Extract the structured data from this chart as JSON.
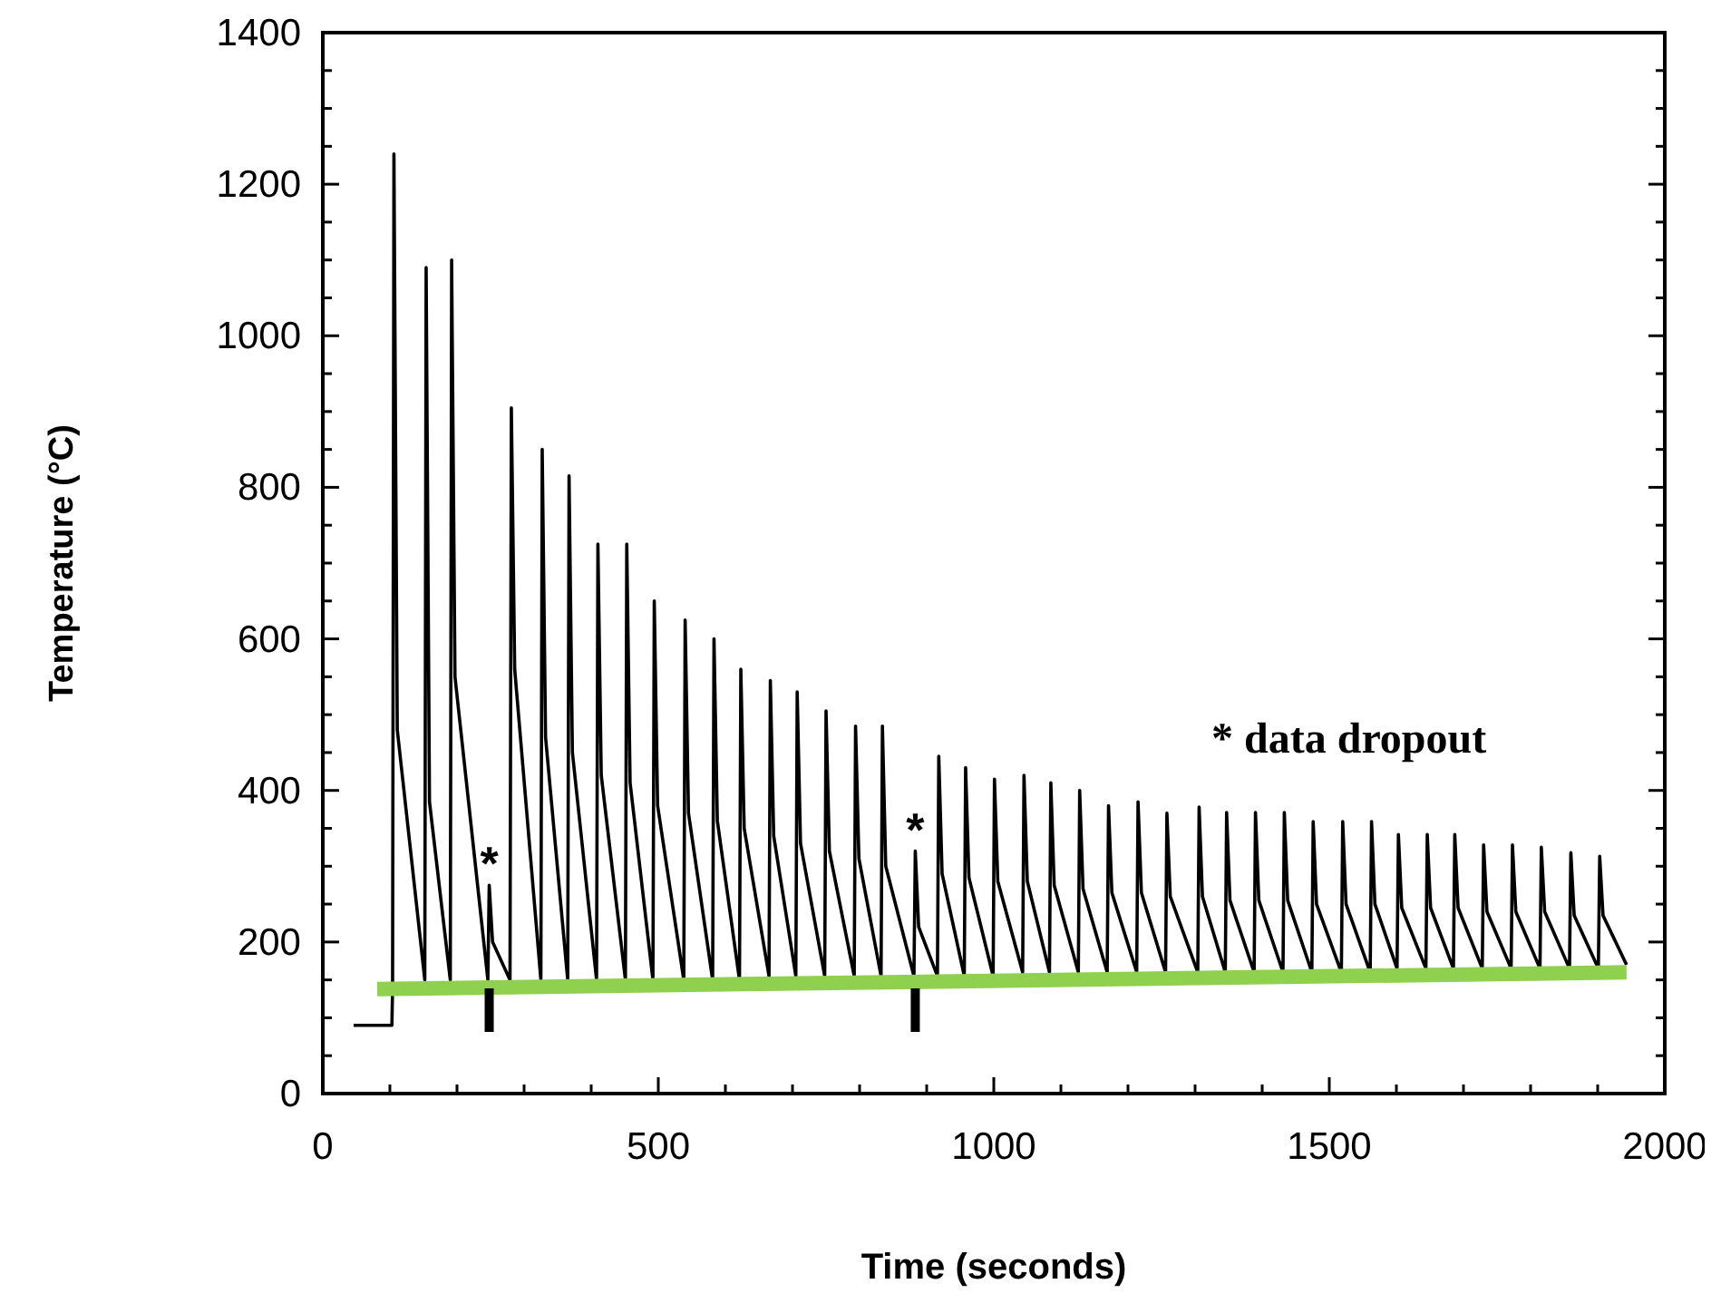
{
  "chart_data": {
    "type": "line",
    "xlabel": "Time (seconds)",
    "ylabel": "Temperature (°C)",
    "xlim": [
      0,
      2000
    ],
    "ylim": [
      0,
      1400
    ],
    "xticks": [
      0,
      {
        "value": 100,
        "label": null
      },
      {
        "value": 200,
        "label": null
      },
      {
        "value": 300,
        "label": null
      },
      {
        "value": 400,
        "label": null
      },
      500,
      {
        "value": 600,
        "label": null
      },
      {
        "value": 700,
        "label": null
      },
      {
        "value": 800,
        "label": null
      },
      {
        "value": 900,
        "label": null
      },
      1000,
      {
        "value": 1100,
        "label": null
      },
      {
        "value": 1200,
        "label": null
      },
      {
        "value": 1300,
        "label": null
      },
      {
        "value": 1400,
        "label": null
      },
      1500,
      {
        "value": 1600,
        "label": null
      },
      {
        "value": 1700,
        "label": null
      },
      {
        "value": 1800,
        "label": null
      },
      {
        "value": 1900,
        "label": null
      },
      2000
    ],
    "yticks": [
      0,
      {
        "value": 50,
        "label": null
      },
      {
        "value": 100,
        "label": null
      },
      {
        "value": 150,
        "label": null
      },
      200,
      {
        "value": 250,
        "label": null
      },
      {
        "value": 300,
        "label": null
      },
      {
        "value": 350,
        "label": null
      },
      400,
      {
        "value": 450,
        "label": null
      },
      {
        "value": 500,
        "label": null
      },
      {
        "value": 550,
        "label": null
      },
      600,
      {
        "value": 650,
        "label": null
      },
      {
        "value": 700,
        "label": null
      },
      {
        "value": 750,
        "label": null
      },
      800,
      {
        "value": 850,
        "label": null
      },
      {
        "value": 900,
        "label": null
      },
      {
        "value": 950,
        "label": null
      },
      1000,
      {
        "value": 1050,
        "label": null
      },
      {
        "value": 1100,
        "label": null
      },
      {
        "value": 1150,
        "label": null
      },
      1200,
      {
        "value": 1250,
        "label": null
      },
      {
        "value": 1300,
        "label": null
      },
      {
        "value": 1350,
        "label": null
      },
      1400
    ],
    "grid": false,
    "marker": "none",
    "line_style": "solid",
    "series": [
      {
        "color": "#000000",
        "x": [
          46,
          103,
          104,
          106,
          111,
          152,
          154,
          159,
          190,
          192,
          197,
          246,
          248,
          253,
          279,
          281,
          286,
          325,
          327,
          332,
          365,
          367,
          372,
          408,
          410,
          415,
          451,
          453,
          458,
          492,
          494,
          499,
          538,
          540,
          545,
          581,
          583,
          588,
          621,
          623,
          628,
          665,
          667,
          672,
          705,
          707,
          712,
          748,
          750,
          755,
          792,
          794,
          799,
          832,
          834,
          839,
          881,
          883,
          888,
          916,
          918,
          923,
          956,
          958,
          963,
          999,
          1001,
          1006,
          1043,
          1045,
          1050,
          1083,
          1085,
          1090,
          1126,
          1128,
          1133,
          1169,
          1171,
          1176,
          1213,
          1215,
          1220,
          1256,
          1258,
          1263,
          1304,
          1306,
          1311,
          1345,
          1347,
          1352,
          1388,
          1390,
          1395,
          1431,
          1433,
          1438,
          1474,
          1476,
          1481,
          1518,
          1520,
          1525,
          1561,
          1563,
          1568,
          1601,
          1603,
          1608,
          1644,
          1646,
          1651,
          1685,
          1687,
          1692,
          1728,
          1730,
          1735,
          1771,
          1773,
          1778,
          1814,
          1816,
          1821,
          1858,
          1860,
          1865,
          1901,
          1903,
          1908,
          1943
        ],
        "values": [
          90,
          90,
          140,
          1240,
          480,
          150,
          1090,
          385,
          150,
          1100,
          550,
          150,
          275,
          200,
          150,
          905,
          560,
          150,
          850,
          470,
          150,
          815,
          450,
          150,
          725,
          420,
          150,
          725,
          410,
          150,
          650,
          380,
          150,
          625,
          370,
          150,
          600,
          360,
          150,
          560,
          350,
          155,
          545,
          340,
          155,
          530,
          330,
          155,
          505,
          320,
          155,
          485,
          310,
          155,
          485,
          300,
          155,
          320,
          220,
          155,
          445,
          290,
          155,
          430,
          285,
          155,
          415,
          280,
          160,
          420,
          280,
          160,
          410,
          275,
          160,
          400,
          270,
          160,
          380,
          265,
          160,
          385,
          265,
          160,
          370,
          260,
          160,
          378,
          260,
          160,
          371,
          255,
          160,
          371,
          255,
          160,
          371,
          255,
          160,
          359,
          250,
          160,
          359,
          250,
          160,
          359,
          250,
          165,
          342,
          245,
          165,
          342,
          245,
          165,
          342,
          245,
          165,
          328,
          240,
          165,
          328,
          240,
          165,
          325,
          240,
          165,
          318,
          235,
          165,
          313,
          235,
          170
        ]
      },
      {
        "type": "line",
        "color": "#8fd14f",
        "x": [
          81,
          1943
        ],
        "values": [
          138,
          160
        ]
      }
    ],
    "annotations": [
      {
        "text": "*",
        "x": 248,
        "y": 275
      },
      {
        "text": "*",
        "x": 883,
        "y": 320
      },
      "* data dropout"
    ]
  }
}
